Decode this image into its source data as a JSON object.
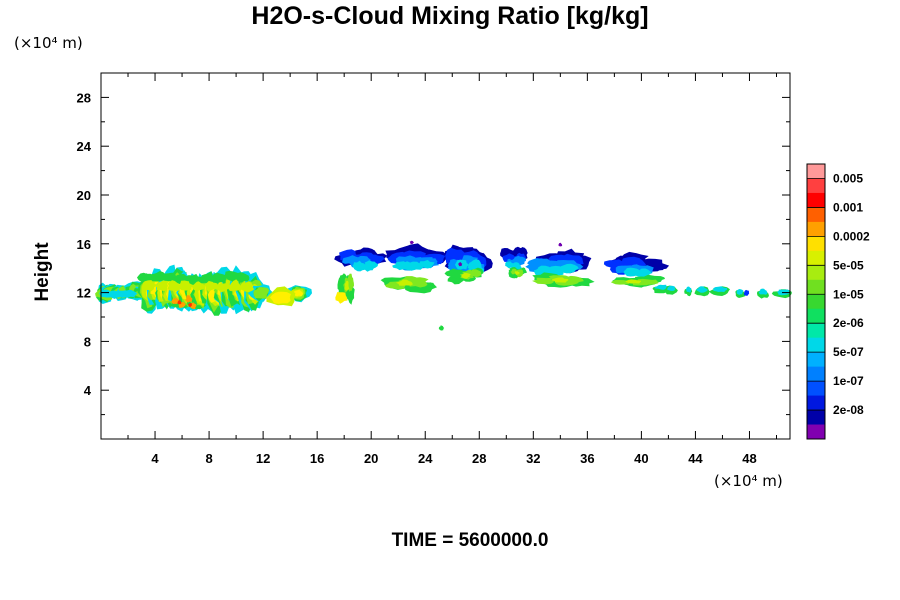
{
  "chart_data": {
    "type": "heatmap",
    "title": "H2O-s-Cloud Mixing Ratio [kg/kg]",
    "ylabel": "Height",
    "y_unit_label": "(×10⁴ m)",
    "x_unit_label": "(×10⁴ m)",
    "time_label": "TIME = 5600000.0",
    "xlim": [
      0,
      51
    ],
    "ylim": [
      0,
      30
    ],
    "x_ticks": [
      "4",
      "8",
      "12",
      "16",
      "20",
      "24",
      "28",
      "32",
      "36",
      "40",
      "44",
      "48"
    ],
    "y_ticks": [
      "4",
      "8",
      "12",
      "16",
      "20",
      "24",
      "28"
    ],
    "colorbar": {
      "labels": [
        "0.005",
        "0.001",
        "0.0002",
        "5e-05",
        "1e-05",
        "2e-06",
        "5e-07",
        "1e-07",
        "2e-08"
      ],
      "colors": [
        "#ff9999",
        "#ff4040",
        "#ff0000",
        "#ff6000",
        "#ffa000",
        "#ffe000",
        "#d8f000",
        "#a8ec10",
        "#70e020",
        "#38d830",
        "#10e060",
        "#00e8a8",
        "#00d8e8",
        "#00b0ff",
        "#0080ff",
        "#0050ff",
        "#0018e0",
        "#0000a8",
        "#8000b0"
      ]
    },
    "cloud_regions": [
      {
        "name": "low-cloud-west",
        "x": [
          0,
          15
        ],
        "z": [
          10.5,
          13.5
        ]
      },
      {
        "name": "mid-anvils",
        "x": [
          17.5,
          41
        ],
        "z": [
          11.5,
          16.2
        ]
      },
      {
        "name": "low-cloud-east",
        "x": [
          41,
          51
        ],
        "z": [
          11.5,
          12.5
        ]
      }
    ]
  }
}
